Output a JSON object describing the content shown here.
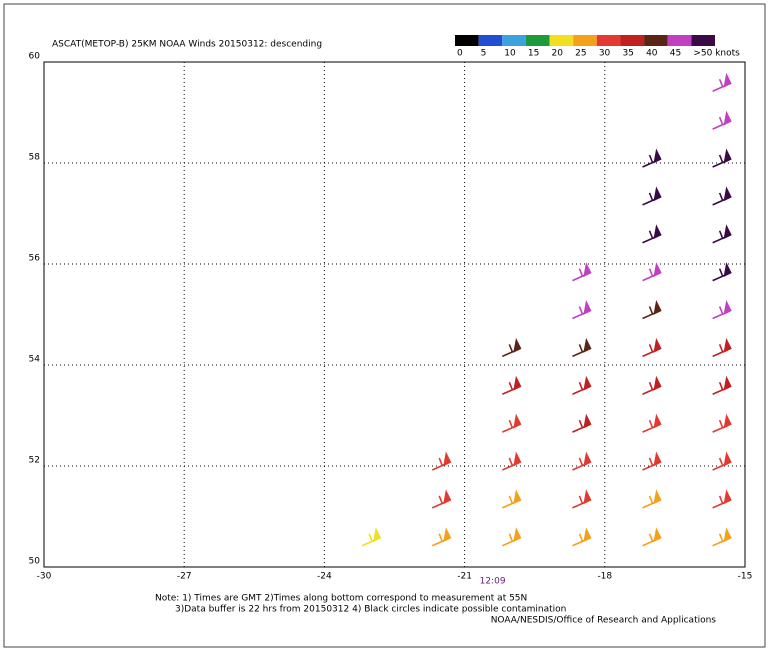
{
  "map": {
    "title": "ASCAT(METOP-B) 25KM NOAA Winds 20150312: descending",
    "legend": {
      "colors": [
        "#000000",
        "#1f4fd0",
        "#3aa2e0",
        "#1c9a3c",
        "#f2e020",
        "#f5a01a",
        "#e23a30",
        "#c02020",
        "#5a2416",
        "#c040c0",
        "#3a0a46"
      ],
      "labels": [
        "0",
        "5",
        "10",
        "15",
        "20",
        "25",
        "30",
        "35",
        "40",
        "45",
        ">50 knots"
      ]
    },
    "xlim": [
      -30,
      -15
    ],
    "xticks": [
      -30,
      -27,
      -24,
      -21,
      -18,
      -15
    ],
    "ylim": [
      50,
      60
    ],
    "yticks": [
      50,
      52,
      54,
      56,
      58,
      60
    ],
    "grid": true,
    "time_labels": [
      {
        "lon": -20.4,
        "label": "12:09"
      }
    ],
    "barbs": {
      "lon": [
        -23,
        -21.5,
        -20,
        -18.5,
        -17,
        -15.5,
        -21.5,
        -20,
        -18.5,
        -17,
        -15.5,
        -21.5,
        -20,
        -18.5,
        -17,
        -15.5,
        -20,
        -18.5,
        -17,
        -15.5,
        -20,
        -18.5,
        -17,
        -15.5,
        -20,
        -18.5,
        -17,
        -15.5,
        -18.5,
        -17,
        -15.5,
        -18.5,
        -17,
        -15.5,
        -17,
        -15.5,
        -17,
        -15.5,
        -17,
        -15.5,
        -15.5,
        -15.5
      ],
      "lat": [
        50.5,
        50.5,
        50.5,
        50.5,
        50.5,
        50.5,
        51.25,
        51.25,
        51.25,
        51.25,
        51.25,
        52,
        52,
        52,
        52,
        52,
        52.75,
        52.75,
        52.75,
        52.75,
        53.5,
        53.5,
        53.5,
        53.5,
        54.25,
        54.25,
        54.25,
        54.25,
        55,
        55,
        55,
        55.75,
        55.75,
        55.75,
        56.5,
        56.5,
        57.25,
        57.25,
        58,
        58,
        58.75,
        59.5
      ],
      "speed": [
        24,
        26,
        28,
        25,
        27,
        29,
        30,
        28,
        31,
        26,
        30,
        33,
        32,
        34,
        33,
        31,
        34,
        35,
        33,
        34,
        38,
        36,
        37,
        35,
        40,
        41,
        38,
        37,
        45,
        44,
        46,
        46,
        48,
        50,
        55,
        52,
        55,
        54,
        52,
        55,
        46,
        45
      ]
    },
    "notes": [
      "Note: 1) Times are GMT 2)Times along bottom correspond to measurement at 55N",
      "3)Data buffer is 22 hrs from 20150312 4) Black circles indicate possible contamination",
      "NOAA/NESDIS/Office of Research and Applications"
    ]
  }
}
